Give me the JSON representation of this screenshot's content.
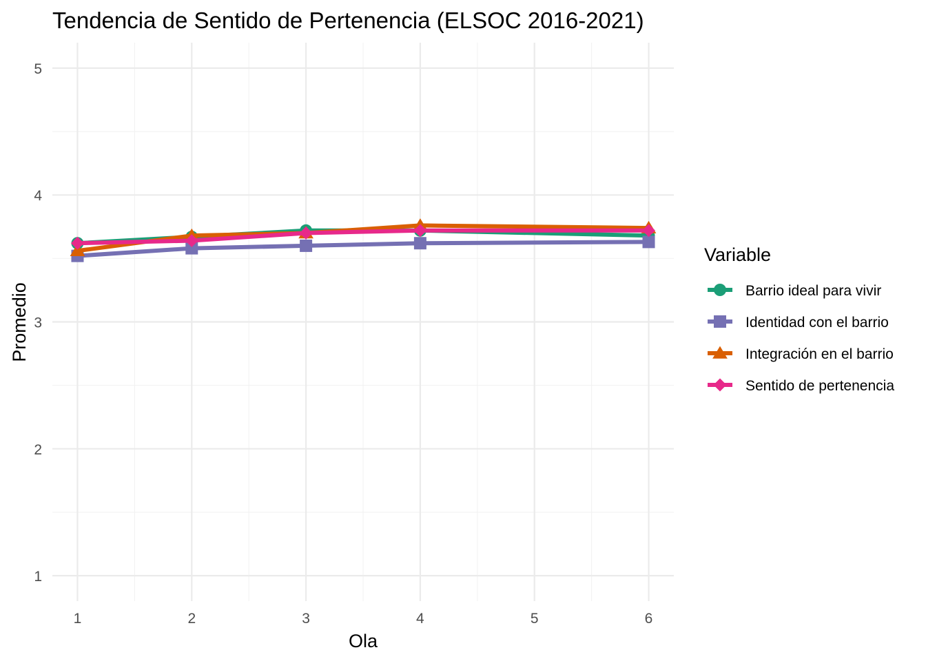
{
  "chart_data": {
    "type": "line",
    "title": "Tendencia de Sentido de Pertenencia (ELSOC 2016-2021)",
    "xlabel": "Ola",
    "ylabel": "Promedio",
    "x": [
      1,
      2,
      3,
      4,
      5,
      6
    ],
    "xlim": [
      0.78,
      6.22
    ],
    "ylim": [
      0.8,
      5.2
    ],
    "x_ticks": [
      1,
      2,
      3,
      4,
      5,
      6
    ],
    "y_ticks": [
      1,
      2,
      3,
      4,
      5
    ],
    "grid": true,
    "legend": {
      "title": "Variable",
      "position": "right"
    },
    "series": [
      {
        "name": "Barrio ideal para vivir",
        "color": "#1b9e77",
        "marker": "circle",
        "points": [
          {
            "x": 1,
            "y": 3.62
          },
          {
            "x": 2,
            "y": 3.67
          },
          {
            "x": 3,
            "y": 3.72
          },
          {
            "x": 4,
            "y": 3.72
          },
          {
            "x": 6,
            "y": 3.68
          }
        ]
      },
      {
        "name": "Identidad con el barrio",
        "color": "#7570b3",
        "marker": "square",
        "points": [
          {
            "x": 1,
            "y": 3.52
          },
          {
            "x": 2,
            "y": 3.58
          },
          {
            "x": 3,
            "y": 3.6
          },
          {
            "x": 4,
            "y": 3.62
          },
          {
            "x": 6,
            "y": 3.63
          }
        ]
      },
      {
        "name": "Integración en el barrio",
        "color": "#d95f02",
        "marker": "triangle",
        "points": [
          {
            "x": 1,
            "y": 3.56
          },
          {
            "x": 2,
            "y": 3.68
          },
          {
            "x": 3,
            "y": 3.7
          },
          {
            "x": 4,
            "y": 3.76
          },
          {
            "x": 6,
            "y": 3.74
          }
        ]
      },
      {
        "name": "Sentido de pertenencia",
        "color": "#e7298a",
        "marker": "diamond",
        "points": [
          {
            "x": 1,
            "y": 3.62
          },
          {
            "x": 2,
            "y": 3.64
          },
          {
            "x": 3,
            "y": 3.7
          },
          {
            "x": 4,
            "y": 3.72
          },
          {
            "x": 6,
            "y": 3.72
          }
        ]
      }
    ]
  }
}
